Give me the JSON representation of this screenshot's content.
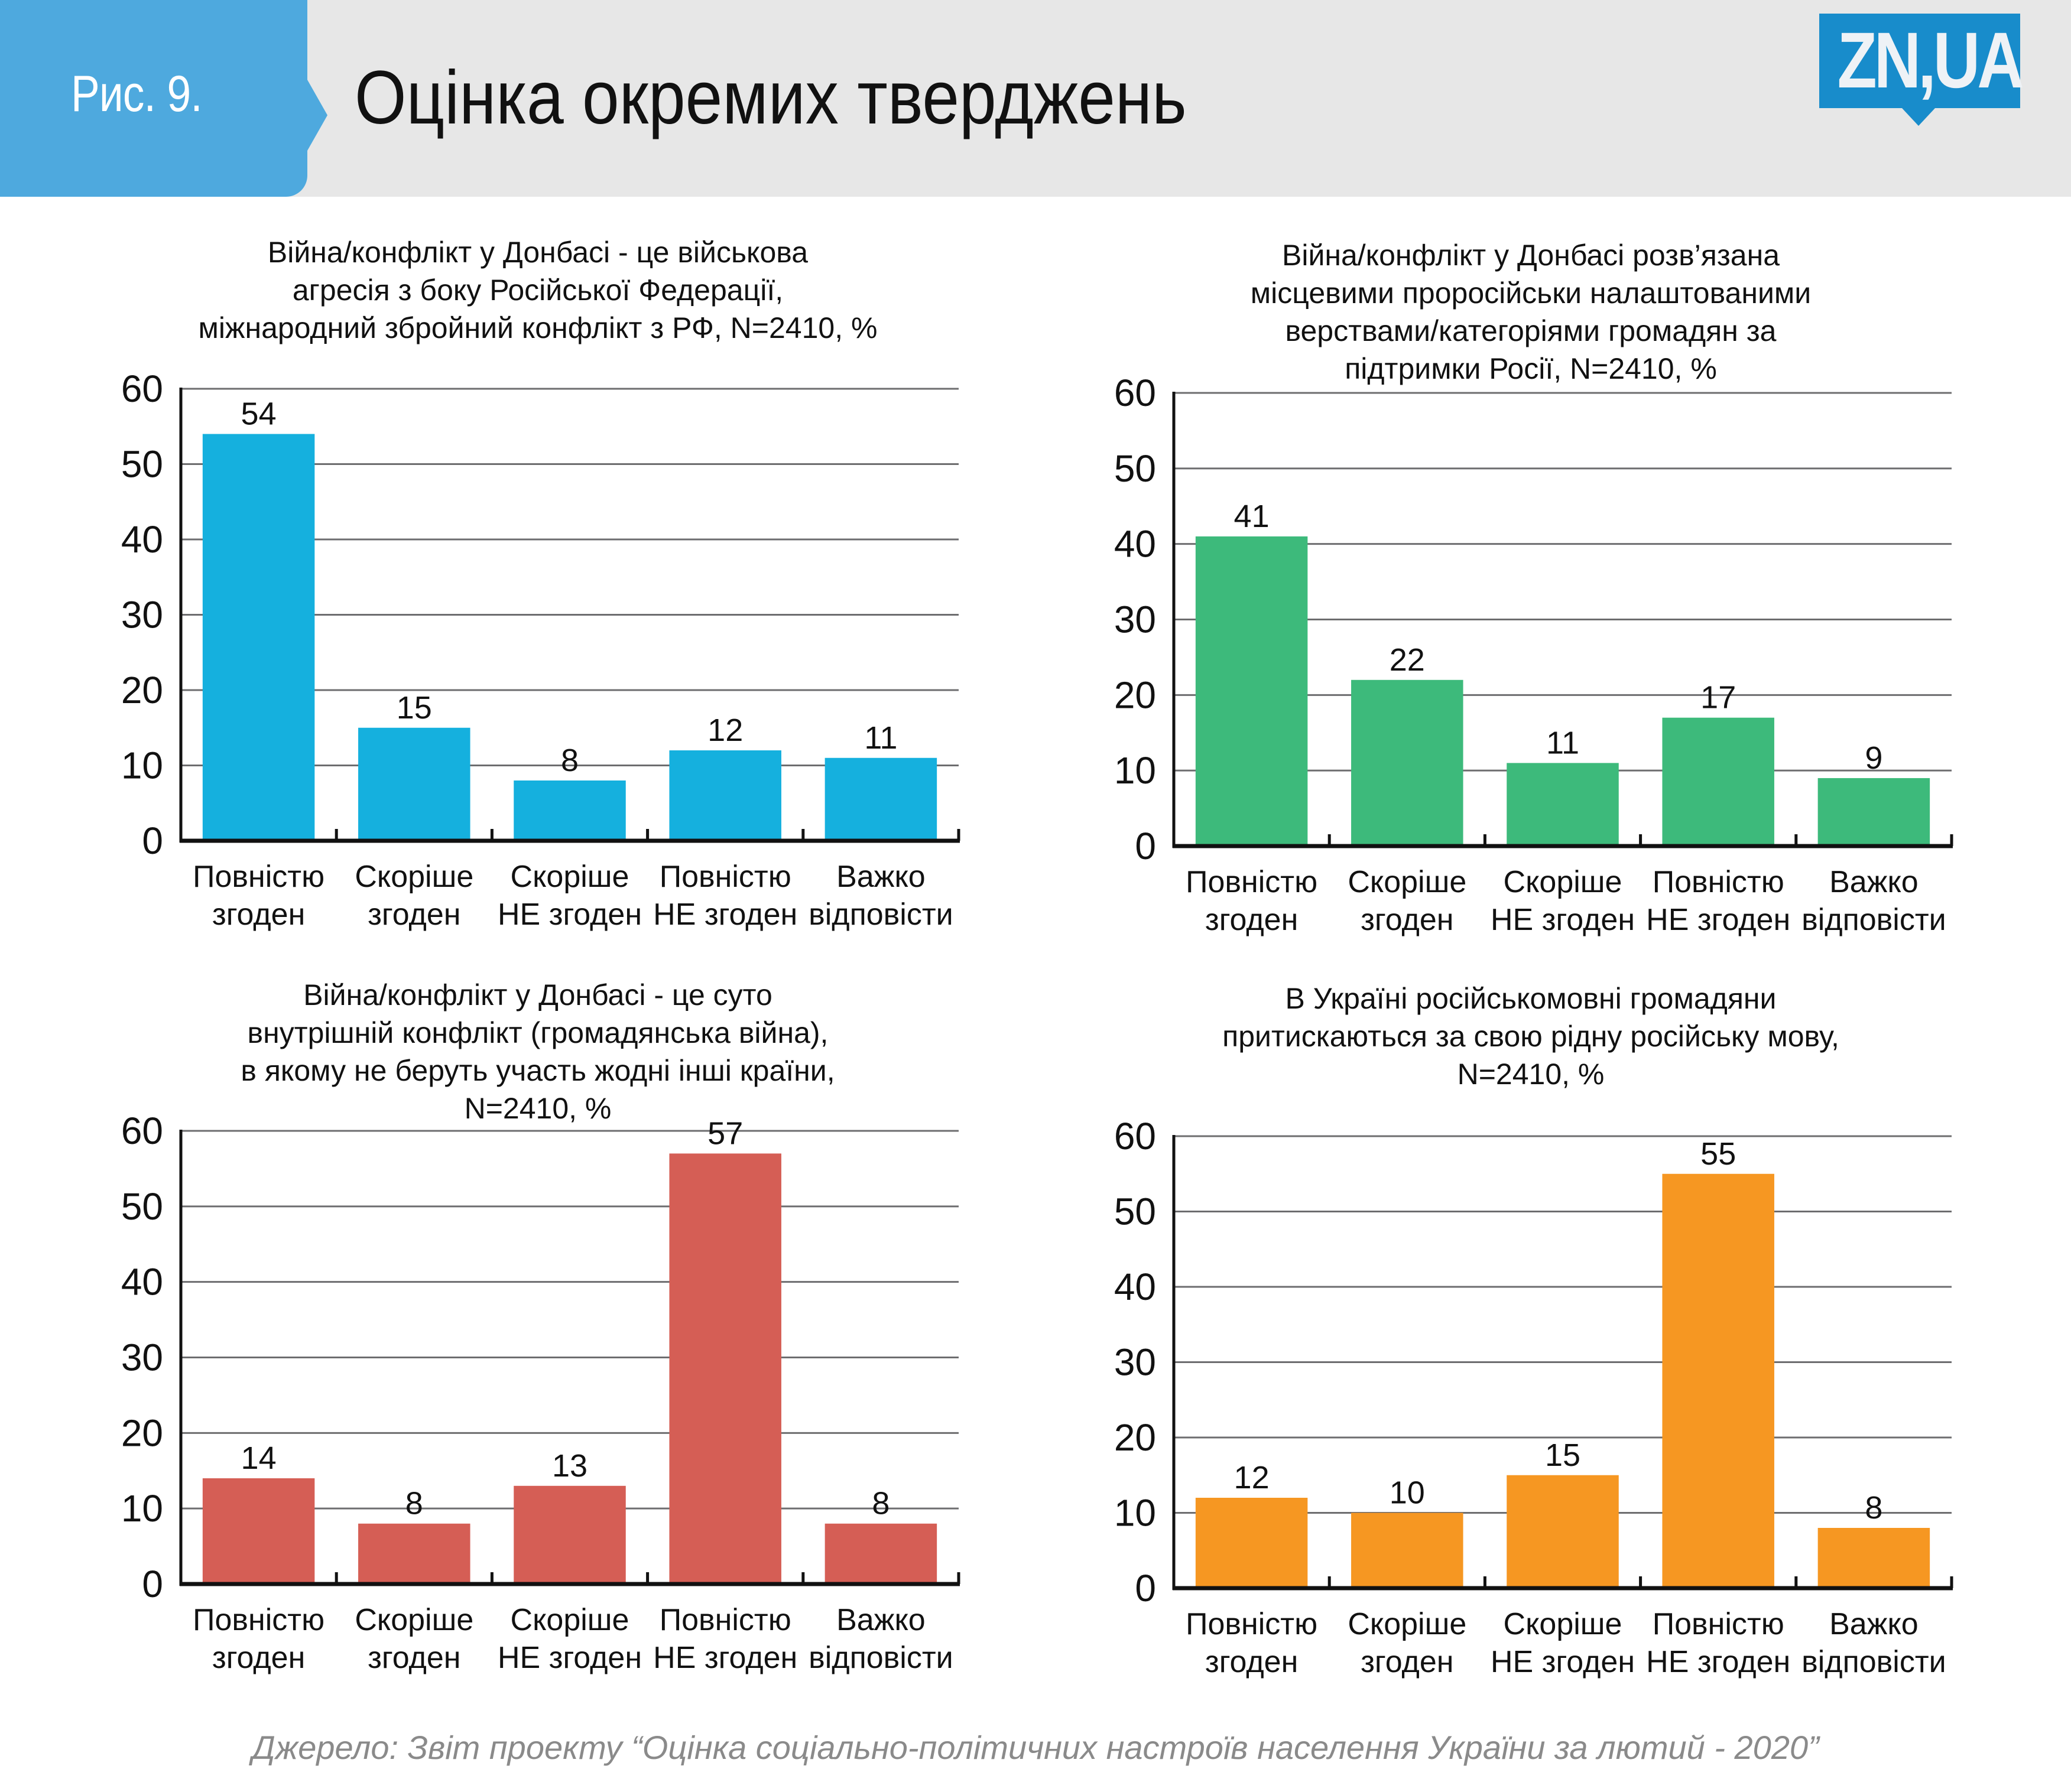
{
  "header": {
    "figure_label": "Рис. 9.",
    "title": "Оцінка окремих тверджень",
    "logo_text": "ZN,UA",
    "accent_color": "#4ea9de",
    "logo_color": "#188ccb"
  },
  "source": "Джерело: Звіт проекту “Оцінка соціально-політичних настроїв населення України за лютий - 2020”",
  "chart_data": [
    {
      "type": "bar",
      "title": "Війна/конфлікт у Донбасі - це військова\nагресія з боку Російської Федерації,\nміжнародний збройний конфлікт з РФ, N=2410, %",
      "categories": [
        "Повністю\nзгоден",
        "Скоріше\nзгоден",
        "Скоріше\nНЕ згоден",
        "Повністю\nНЕ згоден",
        "Важко\nвідповісти"
      ],
      "values": [
        54,
        15,
        8,
        12,
        11
      ],
      "color": "#15b0de",
      "xlabel": "",
      "ylabel": "",
      "ylim": [
        0,
        60
      ],
      "yticks": [
        0,
        10,
        20,
        30,
        40,
        50,
        60
      ],
      "grid": true
    },
    {
      "type": "bar",
      "title": "Війна/конфлікт у Донбасі розв’язана\nмісцевими проросійськи налаштованими\nверствами/категоріями громадян за\nпідтримки Росії, N=2410, %",
      "categories": [
        "Повністю\nзгоден",
        "Скоріше\nзгоден",
        "Скоріше\nНЕ згоден",
        "Повністю\nНЕ згоден",
        "Важко\nвідповісти"
      ],
      "values": [
        41,
        22,
        11,
        17,
        9
      ],
      "color": "#3dba7b",
      "xlabel": "",
      "ylabel": "",
      "ylim": [
        0,
        60
      ],
      "yticks": [
        0,
        10,
        20,
        30,
        40,
        50,
        60
      ],
      "grid": true
    },
    {
      "type": "bar",
      "title": "Війна/конфлікт у Донбасі - це суто\nвнутрішній конфлікт (громадянська війна),\nв якому не беруть участь жодні інші країни,\nN=2410, %",
      "categories": [
        "Повністю\nзгоден",
        "Скоріше\nзгоден",
        "Скоріше\nНЕ згоден",
        "Повністю\nНЕ згоден",
        "Важко\nвідповісти"
      ],
      "values": [
        14,
        8,
        13,
        57,
        8
      ],
      "color": "#d55e55",
      "xlabel": "",
      "ylabel": "",
      "ylim": [
        0,
        60
      ],
      "yticks": [
        0,
        10,
        20,
        30,
        40,
        50,
        60
      ],
      "grid": true
    },
    {
      "type": "bar",
      "title": "В Україні російськомовні громадяни\nпритискаються за свою рідну російську мову,\nN=2410, %",
      "categories": [
        "Повністю\nзгоден",
        "Скоріше\nзгоден",
        "Скоріше\nНЕ згоден",
        "Повністю\nНЕ згоден",
        "Важко\nвідповісти"
      ],
      "values": [
        12,
        10,
        15,
        55,
        8
      ],
      "color": "#f69722",
      "xlabel": "",
      "ylabel": "",
      "ylim": [
        0,
        60
      ],
      "yticks": [
        0,
        10,
        20,
        30,
        40,
        50,
        60
      ],
      "grid": true
    }
  ]
}
